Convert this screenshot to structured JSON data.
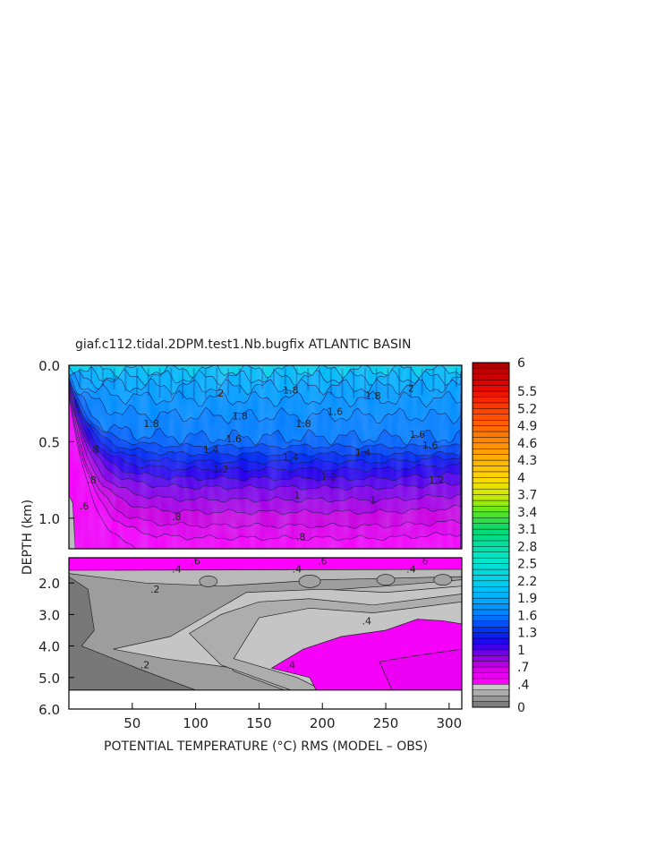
{
  "chart_data": {
    "type": "heatmap",
    "title": "giaf.c112.tidal.2DPM.test1.Nb.bugfix ATLANTIC BASIN",
    "xlabel": "POTENTIAL TEMPERATURE (°C) RMS (MODEL – OBS)",
    "ylabel": "DEPTH (km)",
    "xlim": [
      0,
      310
    ],
    "x_ticks": [
      50,
      100,
      150,
      200,
      250,
      300
    ],
    "x_tick_labels": [
      "50",
      "100",
      "150",
      "200",
      "250",
      "300"
    ],
    "upper_panel": {
      "ylim": [
        0.0,
        1.2
      ],
      "y_ticks": [
        0.0,
        0.5,
        1.0
      ],
      "y_tick_labels": [
        "0.0",
        "0.5",
        "1.0"
      ]
    },
    "lower_panel": {
      "ylim": [
        1.2,
        6.0
      ],
      "y_ticks": [
        2.0,
        3.0,
        4.0,
        5.0,
        6.0
      ],
      "y_tick_labels": [
        "2.0",
        "3.0",
        "4.0",
        "5.0",
        "6.0"
      ],
      "data_bottom": 5.4
    },
    "contour_labels": [
      {
        "panel": "upper",
        "text": "2",
        "x": 120,
        "y": 0.18
      },
      {
        "panel": "upper",
        "text": "1.8",
        "x": 175,
        "y": 0.16
      },
      {
        "panel": "upper",
        "text": "1.8",
        "x": 240,
        "y": 0.2
      },
      {
        "panel": "upper",
        "text": "2",
        "x": 270,
        "y": 0.15
      },
      {
        "panel": "upper",
        "text": "1.8",
        "x": 65,
        "y": 0.38
      },
      {
        "panel": "upper",
        "text": "1.8",
        "x": 135,
        "y": 0.33
      },
      {
        "panel": "upper",
        "text": "1.8",
        "x": 185,
        "y": 0.38
      },
      {
        "panel": "upper",
        "text": "1.6",
        "x": 210,
        "y": 0.3
      },
      {
        "panel": "upper",
        "text": "1.6",
        "x": 130,
        "y": 0.48
      },
      {
        "panel": "upper",
        "text": "1.6",
        "x": 275,
        "y": 0.45
      },
      {
        "panel": "upper",
        "text": "1.6",
        "x": 285,
        "y": 0.52
      },
      {
        "panel": "upper",
        "text": "1.4",
        "x": 112,
        "y": 0.55
      },
      {
        "panel": "upper",
        "text": "1.4",
        "x": 175,
        "y": 0.6
      },
      {
        "panel": "upper",
        "text": "1.4",
        "x": 232,
        "y": 0.57
      },
      {
        "panel": "upper",
        "text": "1.2",
        "x": 120,
        "y": 0.68
      },
      {
        "panel": "upper",
        "text": "1.2",
        "x": 205,
        "y": 0.73
      },
      {
        "panel": "upper",
        "text": "1.2",
        "x": 290,
        "y": 0.75
      },
      {
        "panel": "upper",
        "text": "1",
        "x": 180,
        "y": 0.85
      },
      {
        "panel": "upper",
        "text": "1",
        "x": 240,
        "y": 0.88
      },
      {
        "panel": "upper",
        "text": ".8",
        "x": 85,
        "y": 0.99
      },
      {
        "panel": "upper",
        "text": ".8",
        "x": 183,
        "y": 1.12
      },
      {
        "panel": "upper",
        "text": ".8",
        "x": 20,
        "y": 0.55
      },
      {
        "panel": "upper",
        "text": ".8",
        "x": 18,
        "y": 0.75
      },
      {
        "panel": "upper",
        "text": ".6",
        "x": 12,
        "y": 0.92
      },
      {
        "panel": "lower",
        "text": ".6",
        "x": 100,
        "y": 1.3
      },
      {
        "panel": "lower",
        "text": ".6",
        "x": 200,
        "y": 1.3
      },
      {
        "panel": "lower",
        "text": ".6",
        "x": 280,
        "y": 1.3
      },
      {
        "panel": "lower",
        "text": ".4",
        "x": 85,
        "y": 1.55
      },
      {
        "panel": "lower",
        "text": ".4",
        "x": 180,
        "y": 1.55
      },
      {
        "panel": "lower",
        "text": ".4",
        "x": 270,
        "y": 1.55
      },
      {
        "panel": "lower",
        "text": ".2",
        "x": 68,
        "y": 2.2
      },
      {
        "panel": "lower",
        "text": ".2",
        "x": 60,
        "y": 4.6
      },
      {
        "panel": "lower",
        "text": ".4",
        "x": 235,
        "y": 3.2
      },
      {
        "panel": "lower",
        "text": ".4",
        "x": 175,
        "y": 4.6
      }
    ],
    "colorbar": {
      "tick_labels": [
        "0",
        ".4",
        ".7",
        "1",
        "1.3",
        "1.6",
        "1.9",
        "2.2",
        "2.5",
        "2.8",
        "3.1",
        "3.4",
        "3.7",
        "4",
        "4.3",
        "4.6",
        "4.9",
        "5.2",
        "5.5",
        "6"
      ],
      "tick_values": [
        0,
        0.4,
        0.7,
        1.0,
        1.3,
        1.6,
        1.9,
        2.2,
        2.5,
        2.8,
        3.1,
        3.4,
        3.7,
        4.0,
        4.3,
        4.6,
        4.9,
        5.2,
        5.5,
        6.0
      ],
      "range": [
        0,
        6
      ],
      "n_levels": 60
    }
  }
}
